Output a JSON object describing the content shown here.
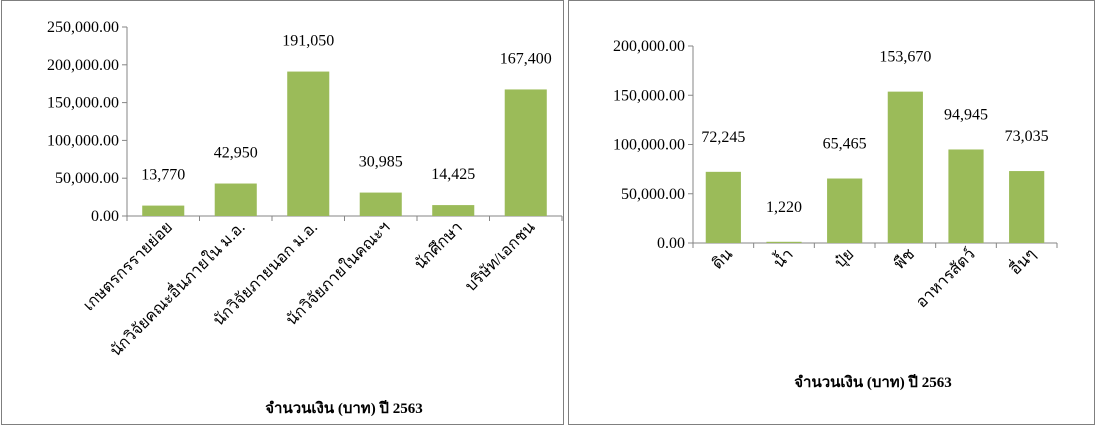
{
  "chart_data": [
    {
      "type": "bar",
      "categories": [
        "เกษตรกรรายย่อย",
        "นักวิจัยคณะอื่นภายใน ม.อ.",
        "นักวิจัยภายนอก ม.อ.",
        "นักวิจัยภายในคณะฯ",
        "นักศึกษา",
        "บริษัท/เอกชน"
      ],
      "values": [
        13770,
        42950,
        191050,
        30985,
        14425,
        167400
      ],
      "data_labels": [
        "13,770",
        "42,950",
        "191,050",
        "30,985",
        "14,425",
        "167,400"
      ],
      "yticks": [
        "0.00",
        "50,000.00",
        "100,000.00",
        "150,000.00",
        "200,000.00",
        "250,000.00"
      ],
      "ylim": [
        0,
        250000
      ],
      "title": "",
      "xlabel": "จำนวนเงิน (บาท) ปี 2563",
      "ylabel": "",
      "bar_color": "#9bbb59",
      "grid": false
    },
    {
      "type": "bar",
      "categories": [
        "ดิน",
        "น้ำ",
        "ปุ๋ย",
        "พืช",
        "อาหารสัตว์",
        "อื่นๆ"
      ],
      "values": [
        72245,
        1220,
        65465,
        153670,
        94945,
        73035
      ],
      "data_labels": [
        "72,245",
        "1,220",
        "65,465",
        "153,670",
        "94,945",
        "73,035"
      ],
      "yticks": [
        "0.00",
        "50,000.00",
        "100,000.00",
        "150,000.00",
        "200,000.00"
      ],
      "ylim": [
        0,
        200000
      ],
      "title": "",
      "xlabel": "จำนวนเงิน (บาท) ปี 2563",
      "ylabel": "",
      "bar_color": "#9bbb59",
      "grid": false
    }
  ]
}
